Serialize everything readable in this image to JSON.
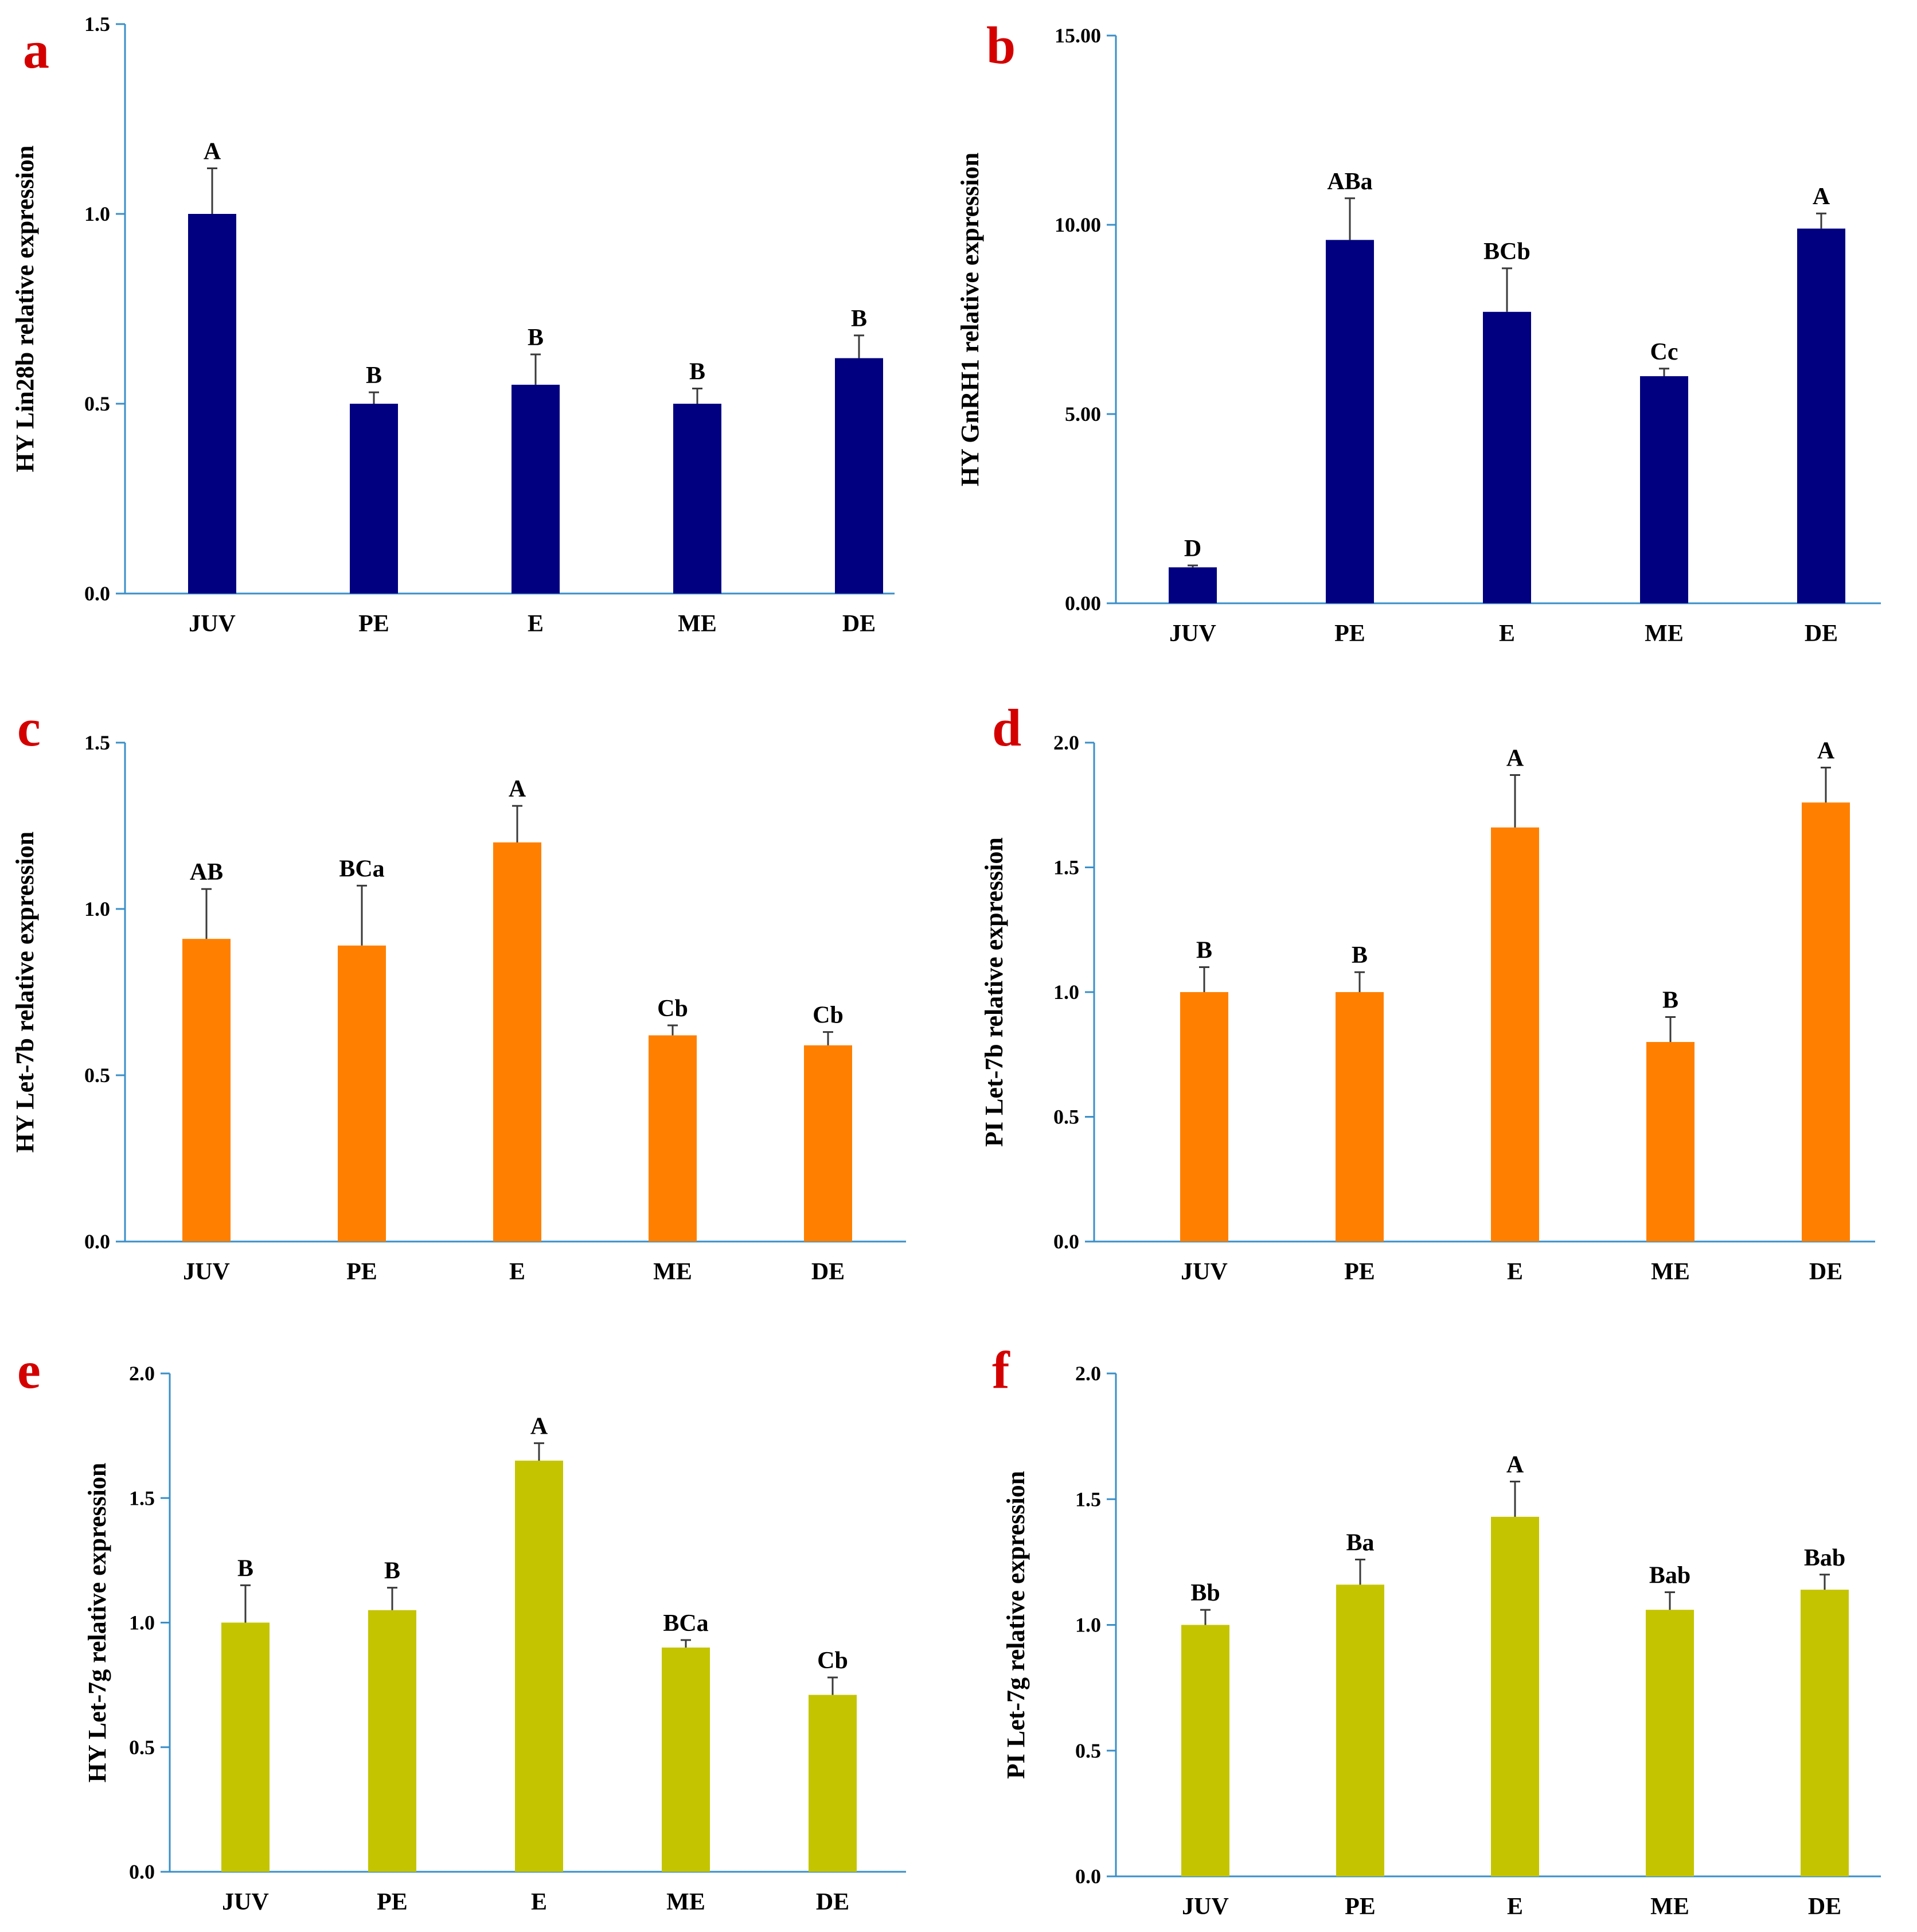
{
  "figure": {
    "background": "#ffffff",
    "axis_color": "#3a8fc8",
    "letter_color": "#d40000"
  },
  "chart_data": [
    {
      "panel": "a",
      "type": "bar",
      "ylabel": "HY Lin28b relative expression",
      "categories": [
        "JUV",
        "PE",
        "E",
        "ME",
        "DE"
      ],
      "values": [
        1.0,
        0.5,
        0.55,
        0.5,
        0.62
      ],
      "errors": [
        0.12,
        0.03,
        0.08,
        0.04,
        0.06
      ],
      "significance": [
        "A",
        "B",
        "B",
        "B",
        "B"
      ],
      "ylim": [
        0,
        1.5
      ],
      "yticks": [
        "0.0",
        "0.5",
        "1.0",
        "1.5"
      ],
      "color": "#000080"
    },
    {
      "panel": "b",
      "type": "bar",
      "ylabel": "HY GnRH1 relative expression",
      "categories": [
        "JUV",
        "PE",
        "E",
        "ME",
        "DE"
      ],
      "values": [
        0.95,
        9.6,
        7.7,
        6.0,
        9.9
      ],
      "errors": [
        0.05,
        1.1,
        1.15,
        0.2,
        0.4
      ],
      "significance": [
        "D",
        "ABa",
        "BCb",
        "Cc",
        "A"
      ],
      "ylim": [
        0,
        15
      ],
      "yticks": [
        "0.00",
        "5.00",
        "10.00",
        "15.00"
      ],
      "color": "#000080"
    },
    {
      "panel": "c",
      "type": "bar",
      "ylabel": "HY Let-7b relative expression",
      "categories": [
        "JUV",
        "PE",
        "E",
        "ME",
        "DE"
      ],
      "values": [
        0.91,
        0.89,
        1.2,
        0.62,
        0.59
      ],
      "errors": [
        0.15,
        0.18,
        0.11,
        0.03,
        0.04
      ],
      "significance": [
        "AB",
        "BCa",
        "A",
        "Cb",
        "Cb"
      ],
      "ylim": [
        0,
        1.5
      ],
      "yticks": [
        "0.0",
        "0.5",
        "1.0",
        "1.5"
      ],
      "color": "#ff8000"
    },
    {
      "panel": "d",
      "type": "bar",
      "ylabel": "PI Let-7b relative expression",
      "categories": [
        "JUV",
        "PE",
        "E",
        "ME",
        "DE"
      ],
      "values": [
        1.0,
        1.0,
        1.66,
        0.8,
        1.76
      ],
      "errors": [
        0.1,
        0.08,
        0.21,
        0.1,
        0.14
      ],
      "significance": [
        "B",
        "B",
        "A",
        "B",
        "A"
      ],
      "ylim": [
        0,
        2.0
      ],
      "yticks": [
        "0.0",
        "0.5",
        "1.0",
        "1.5",
        "2.0"
      ],
      "color": "#ff8000"
    },
    {
      "panel": "e",
      "type": "bar",
      "ylabel": "HY Let-7g relative expression",
      "categories": [
        "JUV",
        "PE",
        "E",
        "ME",
        "DE"
      ],
      "values": [
        1.0,
        1.05,
        1.65,
        0.9,
        0.71
      ],
      "errors": [
        0.15,
        0.09,
        0.07,
        0.03,
        0.07
      ],
      "significance": [
        "B",
        "B",
        "A",
        "BCa",
        "Cb"
      ],
      "ylim": [
        0,
        2.0
      ],
      "yticks": [
        "0.0",
        "0.5",
        "1.0",
        "1.5",
        "2.0"
      ],
      "color": "#c4c400"
    },
    {
      "panel": "f",
      "type": "bar",
      "ylabel": "PI Let-7g relative expression",
      "categories": [
        "JUV",
        "PE",
        "E",
        "ME",
        "DE"
      ],
      "values": [
        1.0,
        1.16,
        1.43,
        1.06,
        1.14
      ],
      "errors": [
        0.06,
        0.1,
        0.14,
        0.07,
        0.06
      ],
      "significance": [
        "Bb",
        "Ba",
        "A",
        "Bab",
        "Bab"
      ],
      "ylim": [
        0,
        2.0
      ],
      "yticks": [
        "0.0",
        "0.5",
        "1.0",
        "1.5",
        "2.0"
      ],
      "color": "#c4c400"
    }
  ]
}
